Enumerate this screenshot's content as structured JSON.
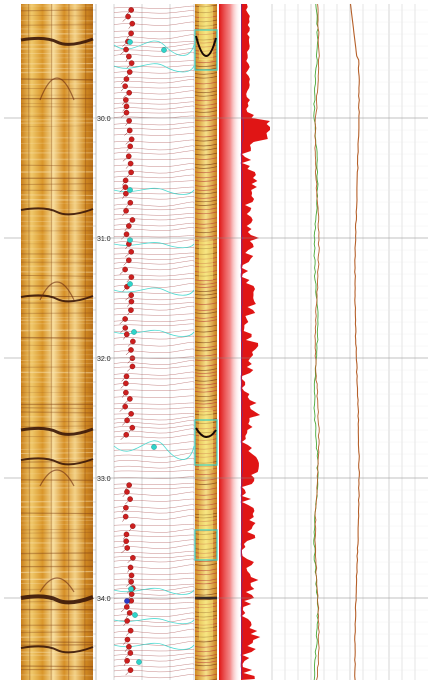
{
  "depth_track": {
    "labels": [
      "30.0",
      "31.0",
      "32.0",
      "33.0",
      "34.0"
    ]
  },
  "colors": {
    "core_base": "#d99a2a",
    "core_light": "#f4d590",
    "core_dark": "#3a1608",
    "bedding_line": "#a84a4a",
    "dip_marker": "#cc1f1f",
    "cyan_marker": "#2fd3c9",
    "gamma_fill": "#e01515",
    "curve_green": "#4aa83a",
    "curve_brown": "#b5602a",
    "curve_purple": "#7a44b8",
    "grid_major": "#8a8a8a",
    "grid_minor": "#cfcfcf"
  },
  "icons": [
    "core-image",
    "dip-tadpole",
    "bedding-sinusoid",
    "gamma-ray-fill",
    "log-curve"
  ]
}
